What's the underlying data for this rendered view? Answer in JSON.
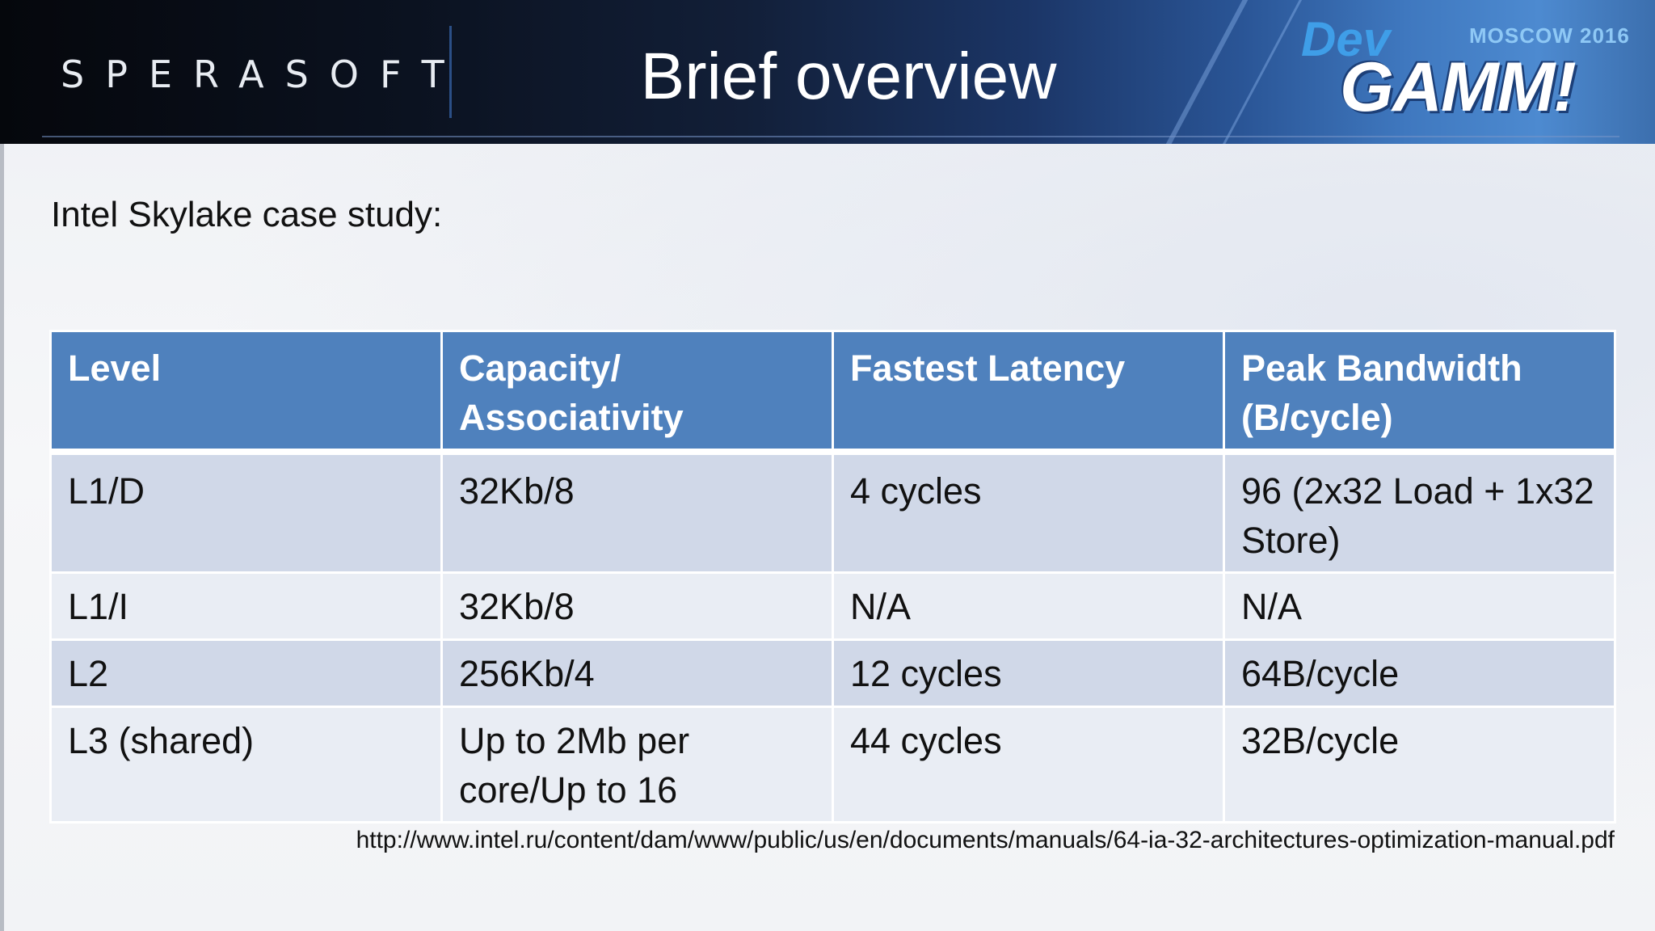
{
  "header": {
    "logo_text": "SPERASOFT",
    "title": "Brief overview",
    "event_logo": {
      "dev": "Dev",
      "moscow": "MOSCOW 2016",
      "gamm": "GAMM!"
    }
  },
  "subtitle": "Intel Skylake case study:",
  "table": {
    "headers": [
      "Level",
      "Capacity/ Associativity",
      "Fastest Latency",
      "Peak Bandwidth (B/cycle)"
    ],
    "rows": [
      [
        "L1/D",
        "32Kb/8",
        "4 cycles",
        "96 (2x32 Load + 1x32 Store)"
      ],
      [
        "L1/I",
        "32Kb/8",
        "N/A",
        "N/A"
      ],
      [
        "L2",
        "256Kb/4",
        "12 cycles",
        "64B/cycle"
      ],
      [
        "L3 (shared)",
        "Up to 2Mb per core/Up to 16",
        "44 cycles",
        "32B/cycle"
      ]
    ]
  },
  "source_url": "http://www.intel.ru/content/dam/www/public/us/en/documents/manuals/64-ia-32-architectures-optimization-manual.pdf",
  "colors": {
    "header_blue": "#4f81bd",
    "row_odd": "#d0d8e8",
    "row_even": "#e9edf4"
  }
}
